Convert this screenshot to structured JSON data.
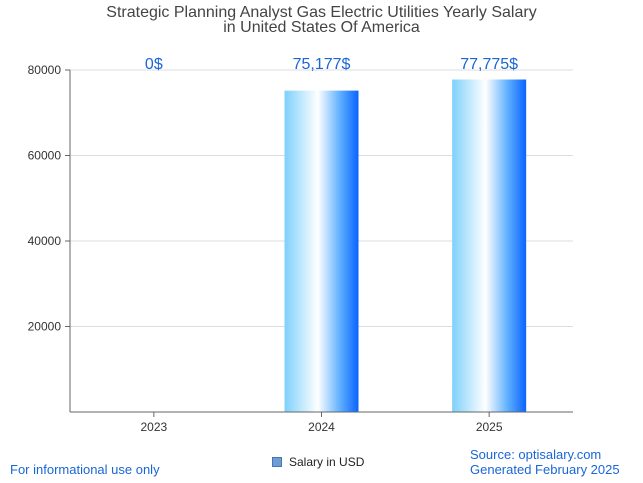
{
  "chart_data": {
    "type": "bar",
    "title_line1": "Strategic Planning Analyst Gas Electric Utilities Yearly Salary",
    "title_line2": "in United States Of America",
    "categories": [
      "2023",
      "2024",
      "2025"
    ],
    "values": [
      0,
      75177,
      77775
    ],
    "value_labels": [
      "0$",
      "75,177$",
      "77,775$"
    ],
    "y_ticks": [
      20000,
      40000,
      60000,
      80000
    ],
    "y_tick_labels": [
      "20000",
      "40000",
      "60000",
      "80000"
    ],
    "ylim": [
      0,
      80000
    ],
    "legend": "Salary in USD",
    "grid": true
  },
  "footer": {
    "left": "For informational use only",
    "source": "Source: optisalary.com",
    "generated": "Generated February 2025"
  },
  "colors": {
    "label": "#1a66d6",
    "axis": "#666666",
    "grid": "#dddddd"
  }
}
